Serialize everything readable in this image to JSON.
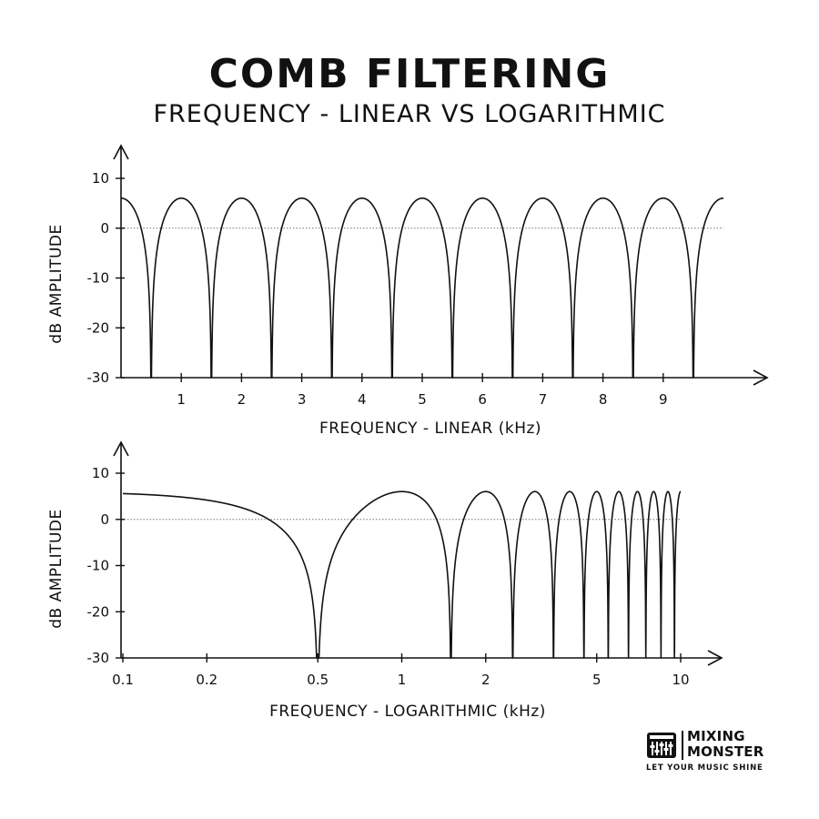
{
  "header": {
    "title": "COMB FILTERING",
    "subtitle": "FREQUENCY - LINEAR VS LOGARITHMIC"
  },
  "chart_data": [
    {
      "type": "line",
      "xscale": "linear",
      "xlabel": "FREQUENCY - LINEAR (kHz)",
      "ylabel": "dB AMPLITUDE",
      "xlim": [
        0,
        10
      ],
      "ylim": [
        -30,
        10
      ],
      "xticks": [
        1,
        2,
        3,
        4,
        5,
        6,
        7,
        8,
        9
      ],
      "yticks": [
        10,
        0,
        -10,
        -20,
        -30
      ],
      "grid": false,
      "reference_line": {
        "y": 0,
        "style": "dotted"
      },
      "series": [
        {
          "formula": "20*log10(|2*cos(pi*f*delay)|)",
          "delay_ms": 1,
          "peak_db": 6,
          "notch_frequencies_khz": [
            0.5,
            1.5,
            2.5,
            3.5,
            4.5,
            5.5,
            6.5,
            7.5,
            8.5,
            9.5
          ],
          "peak_frequencies_khz": [
            1,
            2,
            3,
            4,
            5,
            6,
            7,
            8,
            9,
            10
          ]
        }
      ]
    },
    {
      "type": "line",
      "xscale": "log",
      "xlabel": "FREQUENCY - LOGARITHMIC (kHz)",
      "ylabel": "dB AMPLITUDE",
      "xlim": [
        0.1,
        10
      ],
      "ylim": [
        -30,
        10
      ],
      "xticks": [
        0.1,
        0.2,
        0.5,
        1,
        2,
        5,
        10
      ],
      "xtick_labels": [
        "0.1",
        "0.2",
        "0.5",
        "1",
        "2",
        "5",
        "10"
      ],
      "yticks": [
        10,
        0,
        -10,
        -20,
        -30
      ],
      "grid": false,
      "reference_line": {
        "y": 0,
        "style": "dotted"
      },
      "series": [
        {
          "formula": "20*log10(|2*cos(pi*f*delay)|)",
          "delay_ms": 1,
          "peak_db": 6,
          "notch_frequencies_khz": [
            0.5,
            1.5,
            2.5,
            3.5,
            4.5,
            5.5,
            6.5,
            7.5,
            8.5,
            9.5
          ],
          "peak_frequencies_khz": [
            1,
            2,
            3,
            4,
            5,
            6,
            7,
            8,
            9,
            10
          ]
        }
      ]
    }
  ],
  "logo": {
    "line1": "MIXING",
    "line2": "MONSTER",
    "tagline": "LET YOUR MUSIC SHINE"
  }
}
